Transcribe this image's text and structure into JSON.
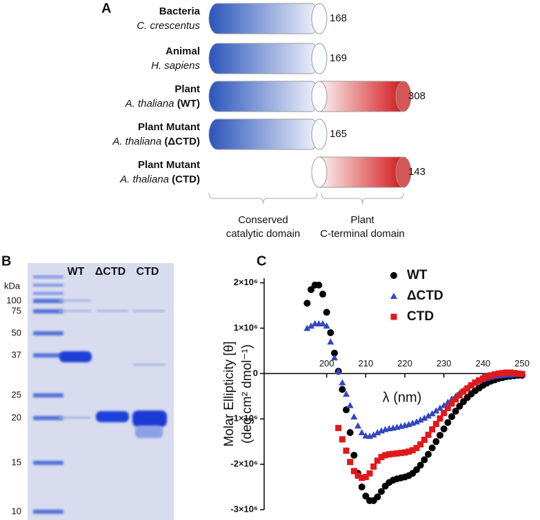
{
  "panel_a": {
    "letter": "A",
    "rows": [
      {
        "group": "Bacteria",
        "species": "C. crescentus",
        "length": "168"
      },
      {
        "group": "Animal",
        "species": "H. sapiens",
        "length": "169"
      },
      {
        "group": "Plant",
        "species": "A. thaliana",
        "variant": "(WT)",
        "length": "308"
      },
      {
        "group": "Plant Mutant",
        "species": "A. thaliana",
        "variant": "(ΔCTD)",
        "length": "165"
      },
      {
        "group": "Plant Mutant",
        "species": "A. thaliana",
        "variant": "(CTD)",
        "length": "143"
      }
    ],
    "domain_labels": [
      [
        "Conserved",
        "catalytic domain"
      ],
      [
        "Plant",
        "C-terminal domain"
      ]
    ]
  },
  "panel_b": {
    "letter": "B",
    "unit": "kDa",
    "lane_labels": [
      "WT",
      "ΔCTD",
      "CTD"
    ],
    "markers": [
      "100",
      "75",
      "50",
      "37",
      "25",
      "20",
      "15",
      "10"
    ]
  },
  "chart_data": {
    "type": "scatter",
    "panel": "C",
    "x_label": "λ (nm)",
    "y_label": [
      "Molar Ellipticity [θ]",
      "(deg cm² dmol⁻¹)"
    ],
    "xlim": [
      184,
      250
    ],
    "xticks": [
      200,
      210,
      220,
      230,
      240,
      250
    ],
    "ylim": [
      -3000000,
      2100000
    ],
    "yticks": [
      {
        "value": 2000000,
        "label": "2×10⁶"
      },
      {
        "value": 1000000,
        "label": "1×10⁶"
      },
      0,
      {
        "value": -1000000,
        "label": "-1×10⁶"
      },
      {
        "value": -2000000,
        "label": "-2×10⁶"
      },
      {
        "value": -3000000,
        "label": "-3×10⁶"
      }
    ],
    "x": [
      195,
      196,
      197,
      198,
      199,
      200,
      201,
      202,
      203,
      204,
      205,
      206,
      207,
      208,
      209,
      210,
      211,
      212,
      213,
      214,
      215,
      216,
      217,
      218,
      219,
      220,
      221,
      222,
      223,
      224,
      225,
      226,
      227,
      228,
      229,
      230,
      231,
      232,
      233,
      234,
      235,
      236,
      237,
      238,
      239,
      240,
      241,
      242,
      243,
      244,
      245,
      246,
      247,
      248,
      249,
      250
    ],
    "series": [
      {
        "name": "WT",
        "color": "#000000",
        "marker": "circle",
        "values": [
          1550000,
          1850000,
          1950000,
          1950000,
          1750000,
          1350000,
          900000,
          450000,
          50000,
          -350000,
          -800000,
          -1300000,
          -1800000,
          -2200000,
          -2500000,
          -2700000,
          -2800000,
          -2800000,
          -2720000,
          -2600000,
          -2480000,
          -2400000,
          -2350000,
          -2320000,
          -2300000,
          -2280000,
          -2250000,
          -2200000,
          -2120000,
          -2020000,
          -1900000,
          -1780000,
          -1640000,
          -1500000,
          -1360000,
          -1220000,
          -1080000,
          -950000,
          -830000,
          -720000,
          -620000,
          -530000,
          -450000,
          -380000,
          -320000,
          -260000,
          -210000,
          -170000,
          -140000,
          -110000,
          -90000,
          -70000,
          -60000,
          -50000,
          -40000,
          -40000
        ]
      },
      {
        "name": "ΔCTD",
        "color": "#3347c0",
        "marker": "triangle",
        "values": [
          1000000,
          1050000,
          1100000,
          1100000,
          1100000,
          1050000,
          700000,
          350000,
          50000,
          -200000,
          -450000,
          -700000,
          -950000,
          -1150000,
          -1300000,
          -1370000,
          -1380000,
          -1350000,
          -1300000,
          -1260000,
          -1230000,
          -1210000,
          -1200000,
          -1180000,
          -1160000,
          -1140000,
          -1120000,
          -1090000,
          -1060000,
          -1020000,
          -980000,
          -930000,
          -880000,
          -820000,
          -760000,
          -700000,
          -630000,
          -560000,
          -500000,
          -430000,
          -370000,
          -310000,
          -260000,
          -210000,
          -170000,
          -130000,
          -100000,
          -80000,
          -60000,
          -50000,
          -40000,
          -30000,
          -30000,
          -20000,
          -20000,
          -20000
        ]
      },
      {
        "name": "CTD",
        "color": "#e0191b",
        "marker": "square",
        "values": [
          null,
          null,
          null,
          null,
          null,
          null,
          null,
          null,
          -1200000,
          -1450000,
          -1700000,
          -1950000,
          -2150000,
          -2250000,
          -2300000,
          -2280000,
          -2200000,
          -2050000,
          -1920000,
          -1840000,
          -1800000,
          -1780000,
          -1770000,
          -1760000,
          -1750000,
          -1740000,
          -1720000,
          -1690000,
          -1640000,
          -1560000,
          -1460000,
          -1350000,
          -1230000,
          -1110000,
          -990000,
          -870000,
          -760000,
          -660000,
          -570000,
          -480000,
          -400000,
          -330000,
          -260000,
          -200000,
          -150000,
          -110000,
          -70000,
          -40000,
          -20000,
          0,
          10000,
          20000,
          20000,
          10000,
          0,
          -10000
        ]
      }
    ]
  }
}
